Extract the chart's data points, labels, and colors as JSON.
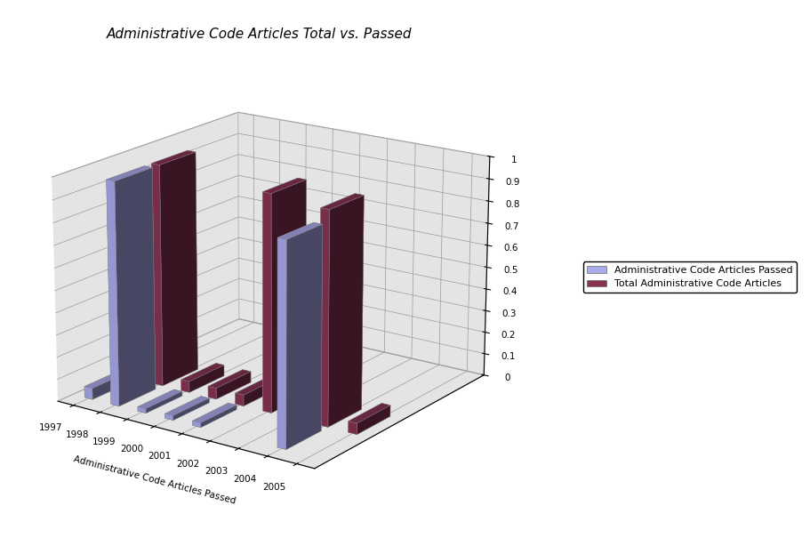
{
  "title": "Administrative Code Articles Total vs. Passed",
  "years": [
    1997,
    1998,
    1999,
    2000,
    2001,
    2002,
    2003,
    2004,
    2005
  ],
  "passed": [
    0.05,
    1.0,
    0.02,
    0.02,
    0.02,
    0.0,
    0.0,
    0.9,
    0.0
  ],
  "total": [
    0.08,
    1.0,
    0.05,
    0.05,
    0.05,
    0.97,
    0.05,
    0.95,
    0.05
  ],
  "passed_color": "#AAAAEE",
  "total_color": "#883355",
  "legend_labels": [
    "Administrative Code Articles Passed",
    "Total Administrative Code Articles"
  ],
  "xlabel": "Administrative Code Articles Passed",
  "ylim": [
    0,
    1.0
  ],
  "wall_color": "#CBCBCB",
  "floor_color": "#B0B0B0",
  "title_fontsize": 11,
  "elev": 18,
  "azim": -55
}
